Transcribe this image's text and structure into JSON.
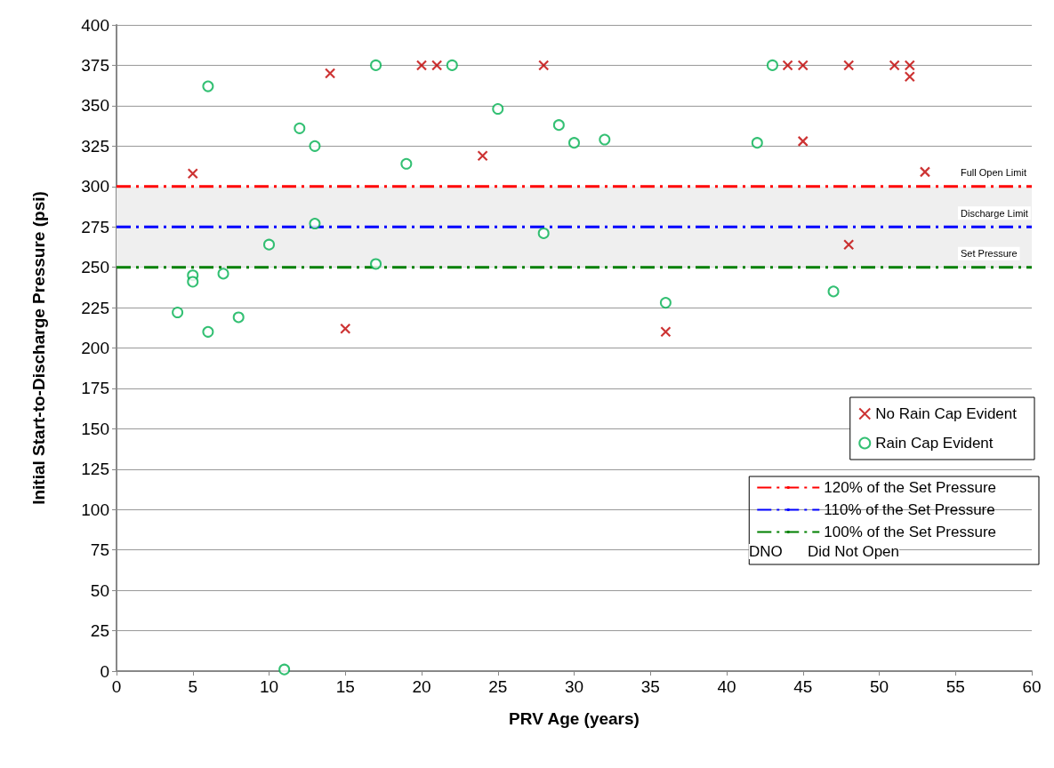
{
  "chart_data": {
    "type": "scatter",
    "xlabel": "PRV Age (years)",
    "ylabel": "Initial Start-to-Discharge Pressure (psi)",
    "xlim": [
      0,
      60
    ],
    "xticks": [
      0,
      5,
      10,
      15,
      20,
      25,
      30,
      35,
      40,
      45,
      50,
      55,
      60
    ],
    "ylim": [
      0,
      400
    ],
    "yticks": [
      0,
      25,
      50,
      75,
      100,
      125,
      150,
      175,
      200,
      225,
      250,
      275,
      300,
      325,
      350,
      375,
      400
    ],
    "grid": "y",
    "legend": "right",
    "bands": [
      {
        "axis": "y",
        "from": 250,
        "to": 300,
        "color": "#efefef"
      }
    ],
    "series": [
      {
        "name": "No Rain Cap Evident",
        "marker": "cross",
        "color": "#c00000",
        "x": [
          5,
          14,
          15,
          20,
          21,
          24,
          28,
          36,
          44,
          45,
          45,
          48,
          48,
          51,
          52,
          52,
          53
        ],
        "values": [
          308,
          370,
          212,
          375,
          375,
          319,
          375,
          210,
          375,
          375,
          328,
          375,
          264,
          375,
          375,
          368,
          309
        ]
      },
      {
        "name": "Rain Cap Evident",
        "marker": "circle",
        "color": "#00b050",
        "x": [
          4,
          5,
          5,
          6,
          6,
          7,
          8,
          10,
          11,
          12,
          13,
          13,
          17,
          17,
          19,
          22,
          25,
          28,
          29,
          30,
          32,
          36,
          42,
          43,
          47
        ],
        "values": [
          222,
          245,
          241,
          362,
          210,
          246,
          219,
          264,
          1,
          336,
          325,
          277,
          375,
          252,
          314,
          375,
          348,
          271,
          338,
          327,
          329,
          228,
          327,
          375,
          235
        ]
      },
      {
        "name": "120% of the Set Pressure",
        "type": "line",
        "marker": "none",
        "line_style": "dashed",
        "color": "#ff0000",
        "x": [
          0,
          60
        ],
        "values": [
          300,
          300
        ]
      },
      {
        "name": "110% of the Set Pressure",
        "type": "line",
        "marker": "none",
        "line_style": "dashed",
        "color": "#0000ff",
        "x": [
          0,
          60
        ],
        "values": [
          275,
          275
        ]
      },
      {
        "name": "100% of the Set Pressure",
        "type": "line",
        "marker": "none",
        "line_style": "dashed",
        "color": "#008000",
        "x": [
          0,
          60
        ],
        "values": [
          250,
          250
        ]
      }
    ],
    "annotations": [
      {
        "text": "Full Open Limit",
        "y": 300
      },
      {
        "text": "Discharge Limit",
        "y": 275
      },
      {
        "text": "Set Pressure",
        "y": 250
      },
      "DNO     Did Not Open"
    ]
  }
}
